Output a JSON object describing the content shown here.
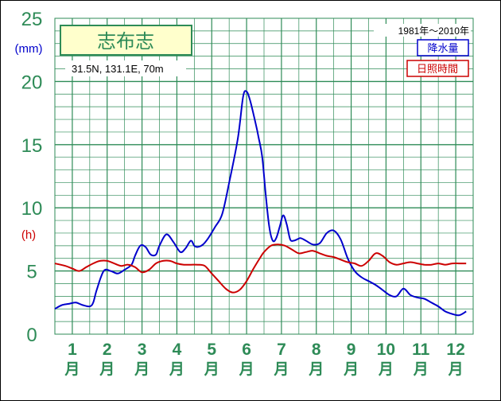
{
  "chart_data": {
    "type": "line",
    "station": {
      "name": "志布志",
      "coords": "31.5N,  131.1E,  70m"
    },
    "period": "1981年〜2010年",
    "legend": [
      "降水量",
      "日照時間"
    ],
    "y_axis": {
      "range": [
        0,
        25
      ],
      "ticks": [
        "0",
        "5",
        "10",
        "15",
        "20",
        "25"
      ],
      "unit_precip": "(mm)",
      "unit_sun": "(h)"
    },
    "x_axis": {
      "months": [
        "1",
        "2",
        "3",
        "4",
        "5",
        "6",
        "7",
        "8",
        "9",
        "10",
        "11",
        "12"
      ],
      "suffix": "月"
    },
    "series": [
      {
        "name": "降水量",
        "color": "#0000cc",
        "x": [
          0.0,
          0.2,
          0.4,
          0.6,
          0.8,
          1.0,
          1.1,
          1.2,
          1.4,
          1.6,
          1.8,
          2.0,
          2.2,
          2.3,
          2.45,
          2.6,
          2.75,
          2.9,
          3.0,
          3.2,
          3.4,
          3.6,
          3.75,
          3.9,
          4.0,
          4.1,
          4.25,
          4.4,
          4.6,
          4.8,
          5.0,
          5.25,
          5.4,
          5.5,
          5.6,
          5.75,
          5.85,
          5.95,
          6.05,
          6.15,
          6.25,
          6.35,
          6.45,
          6.55,
          6.65,
          6.75,
          6.85,
          6.95,
          7.05,
          7.2,
          7.4,
          7.6,
          7.8,
          8.0,
          8.2,
          8.4,
          8.6,
          8.8,
          9.0,
          9.2,
          9.4,
          9.6,
          9.8,
          10.0,
          10.2,
          10.4,
          10.6,
          10.8,
          11.0,
          11.2,
          11.4,
          11.6,
          11.8
        ],
        "values": [
          2.0,
          2.3,
          2.4,
          2.5,
          2.3,
          2.2,
          2.5,
          3.5,
          5.0,
          5.0,
          4.8,
          5.1,
          5.5,
          6.2,
          7.0,
          6.9,
          6.3,
          6.3,
          7.0,
          7.9,
          7.3,
          6.5,
          6.8,
          7.4,
          7.0,
          6.9,
          7.1,
          7.6,
          8.5,
          9.5,
          12.0,
          15.5,
          18.8,
          19.2,
          18.5,
          16.8,
          15.5,
          14.0,
          11.0,
          8.5,
          7.4,
          7.6,
          8.5,
          9.4,
          8.7,
          7.5,
          7.4,
          7.5,
          7.6,
          7.4,
          7.1,
          7.2,
          8.0,
          8.2,
          7.5,
          6.0,
          5.0,
          4.5,
          4.2,
          3.9,
          3.5,
          3.1,
          3.0,
          3.6,
          3.1,
          2.9,
          2.8,
          2.5,
          2.2,
          1.8,
          1.6,
          1.5,
          1.8
        ]
      },
      {
        "name": "日照時間",
        "color": "#cc0000",
        "x": [
          0.0,
          0.3,
          0.5,
          0.7,
          0.9,
          1.1,
          1.3,
          1.5,
          1.7,
          1.9,
          2.1,
          2.3,
          2.5,
          2.7,
          2.9,
          3.1,
          3.3,
          3.5,
          3.7,
          3.9,
          4.1,
          4.3,
          4.5,
          4.7,
          4.9,
          5.1,
          5.3,
          5.5,
          5.7,
          5.9,
          6.0,
          6.2,
          6.4,
          6.6,
          6.8,
          7.0,
          7.2,
          7.4,
          7.6,
          7.8,
          8.0,
          8.2,
          8.4,
          8.6,
          8.8,
          9.0,
          9.2,
          9.4,
          9.6,
          9.8,
          10.0,
          10.2,
          10.4,
          10.6,
          10.8,
          11.0,
          11.2,
          11.4,
          11.6,
          11.8
        ],
        "values": [
          5.6,
          5.4,
          5.2,
          5.0,
          5.3,
          5.6,
          5.8,
          5.8,
          5.6,
          5.4,
          5.5,
          5.3,
          4.9,
          5.1,
          5.6,
          5.8,
          5.8,
          5.6,
          5.5,
          5.5,
          5.5,
          5.4,
          4.8,
          4.2,
          3.6,
          3.3,
          3.5,
          4.2,
          5.2,
          6.1,
          6.5,
          7.0,
          7.1,
          7.0,
          6.7,
          6.4,
          6.5,
          6.6,
          6.4,
          6.2,
          6.1,
          5.9,
          5.7,
          5.6,
          5.4,
          5.8,
          6.4,
          6.2,
          5.7,
          5.5,
          5.6,
          5.7,
          5.6,
          5.5,
          5.5,
          5.6,
          5.5,
          5.6,
          5.6,
          5.6
        ]
      }
    ]
  }
}
